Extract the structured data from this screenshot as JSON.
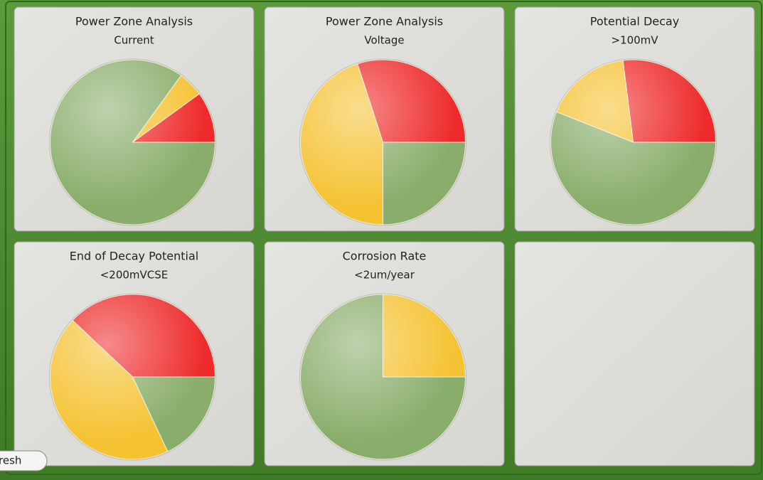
{
  "chart_data": [
    {
      "type": "pie",
      "title": "Power Zone Analysis",
      "subtitle": "Current",
      "values": [
        10,
        5,
        85
      ],
      "colors": [
        "#ee2a2a",
        "#f5c232",
        "#89ad6b"
      ]
    },
    {
      "type": "pie",
      "title": "Power Zone Analysis",
      "subtitle": "Voltage",
      "values": [
        30,
        45,
        25
      ],
      "colors": [
        "#ee2a2a",
        "#f5c232",
        "#89ad6b"
      ]
    },
    {
      "type": "pie",
      "title": "Potential Decay",
      "subtitle": ">100mV",
      "values": [
        27,
        17,
        56
      ],
      "colors": [
        "#ee2a2a",
        "#f5c232",
        "#89ad6b"
      ]
    },
    {
      "type": "pie",
      "title": "End of Decay Potential",
      "subtitle": "<200mVCSE",
      "values": [
        38,
        44,
        18
      ],
      "colors": [
        "#ee2a2a",
        "#f5c232",
        "#89ad6b"
      ]
    },
    {
      "type": "pie",
      "title": "Corrosion Rate",
      "subtitle": "<2um/year",
      "values": [
        0,
        25,
        75
      ],
      "colors": [
        "#ee2a2a",
        "#f5c232",
        "#89ad6b"
      ]
    }
  ],
  "button": {
    "label": "resh"
  }
}
